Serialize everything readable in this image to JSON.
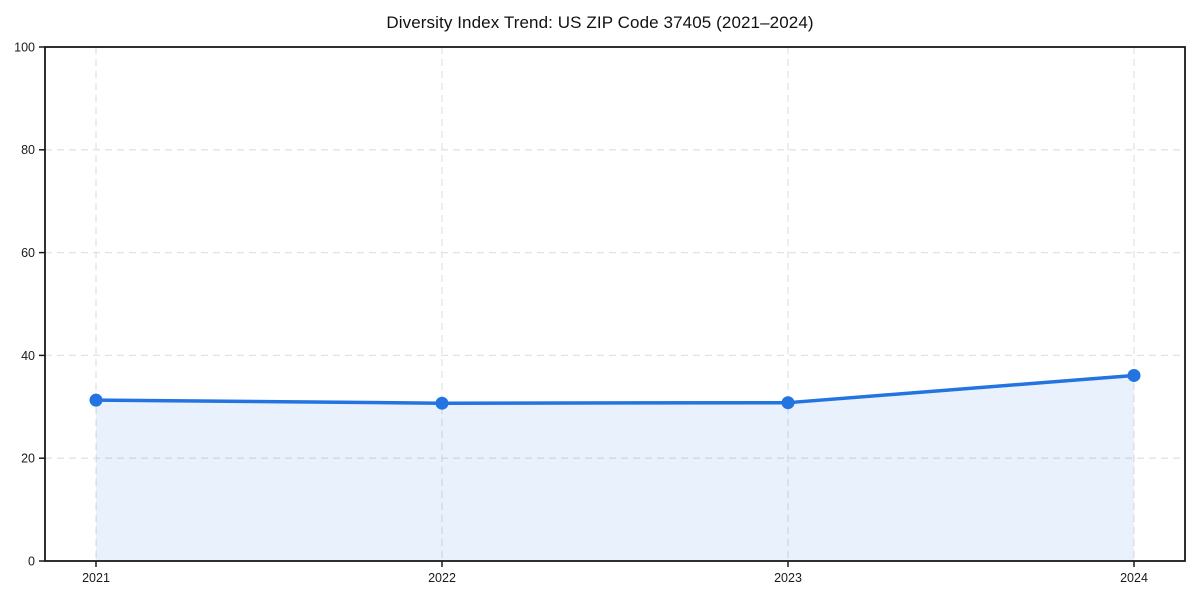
{
  "page": {
    "background": "#ffffff"
  },
  "chart_data": {
    "type": "area",
    "title": "Diversity Index Trend: US ZIP Code 37405 (2021–2024)",
    "x": [
      "2021",
      "2022",
      "2023",
      "2024"
    ],
    "series": [
      {
        "name": "Diversity Index",
        "values": [
          31.3,
          30.7,
          30.8,
          36.1
        ]
      }
    ],
    "xlabel": "",
    "ylabel": "",
    "ylim": [
      0,
      100
    ],
    "yticks": [
      0,
      20,
      40,
      60,
      80,
      100
    ],
    "xticks": [
      "2021",
      "2022",
      "2023",
      "2024"
    ],
    "grid": "dashed",
    "legend": "none",
    "colors": {
      "line": "#2374e1",
      "marker": "#2374e1",
      "fill_rgba": "rgba(35,116,225,0.10)",
      "grid": "#e3e3e3",
      "spine": "#1a1a1a",
      "tick_text": "#1a1a1a",
      "title_text": "#111111"
    }
  }
}
